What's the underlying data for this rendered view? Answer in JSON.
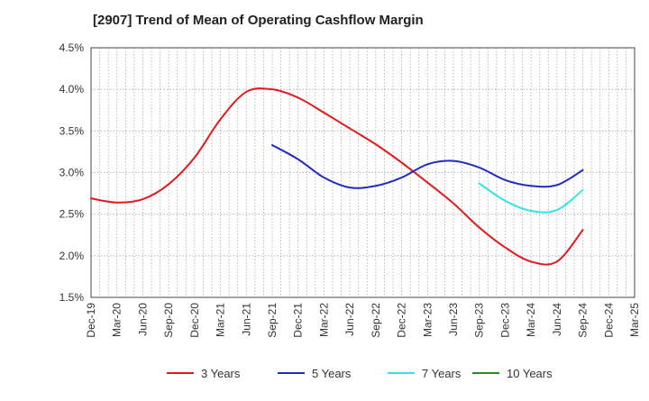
{
  "chart_data": {
    "type": "line",
    "title": "[2907]  Trend of Mean of Operating Cashflow Margin",
    "xlabel": "",
    "ylabel": "",
    "ylim": [
      1.5,
      4.5
    ],
    "y_ticks": [
      "1.5%",
      "2.0%",
      "2.5%",
      "3.0%",
      "3.5%",
      "4.0%",
      "4.5%"
    ],
    "x_ticks": [
      "Dec-19",
      "Mar-20",
      "Jun-20",
      "Sep-20",
      "Dec-20",
      "Mar-21",
      "Jun-21",
      "Sep-21",
      "Dec-21",
      "Mar-22",
      "Jun-22",
      "Sep-22",
      "Dec-22",
      "Mar-23",
      "Jun-23",
      "Sep-23",
      "Dec-23",
      "Mar-24",
      "Jun-24",
      "Sep-24",
      "Dec-24",
      "Mar-25"
    ],
    "grid": true,
    "legend_position": "bottom",
    "series": [
      {
        "name": "3 Years",
        "color": "#e31a1c",
        "x": [
          "Dec-19",
          "Mar-20",
          "Jun-20",
          "Sep-20",
          "Dec-20",
          "Mar-21",
          "Jun-21",
          "Sep-21",
          "Dec-21",
          "Mar-22",
          "Jun-22",
          "Sep-22",
          "Dec-22",
          "Mar-23",
          "Jun-23",
          "Sep-23",
          "Dec-23",
          "Mar-24",
          "Jun-24",
          "Sep-24"
        ],
        "values": [
          2.69,
          2.64,
          2.68,
          2.86,
          3.18,
          3.64,
          3.97,
          4.0,
          3.9,
          3.72,
          3.53,
          3.34,
          3.12,
          2.88,
          2.63,
          2.34,
          2.1,
          1.93,
          1.93,
          2.31
        ]
      },
      {
        "name": "5 Years",
        "color": "#1f2dbf",
        "x": [
          "Sep-21",
          "Dec-21",
          "Mar-22",
          "Jun-22",
          "Sep-22",
          "Dec-22",
          "Mar-23",
          "Jun-23",
          "Sep-23",
          "Dec-23",
          "Mar-24",
          "Jun-24",
          "Sep-24"
        ],
        "values": [
          3.33,
          3.16,
          2.94,
          2.82,
          2.84,
          2.94,
          3.1,
          3.14,
          3.06,
          2.91,
          2.84,
          2.85,
          3.03
        ]
      },
      {
        "name": "7 Years",
        "color": "#2ee6ea",
        "x": [
          "Sep-23",
          "Dec-23",
          "Mar-24",
          "Jun-24",
          "Sep-24"
        ],
        "values": [
          2.87,
          2.66,
          2.54,
          2.55,
          2.79
        ]
      },
      {
        "name": "10 Years",
        "color": "#2a8a2a",
        "x": [],
        "values": []
      }
    ]
  }
}
